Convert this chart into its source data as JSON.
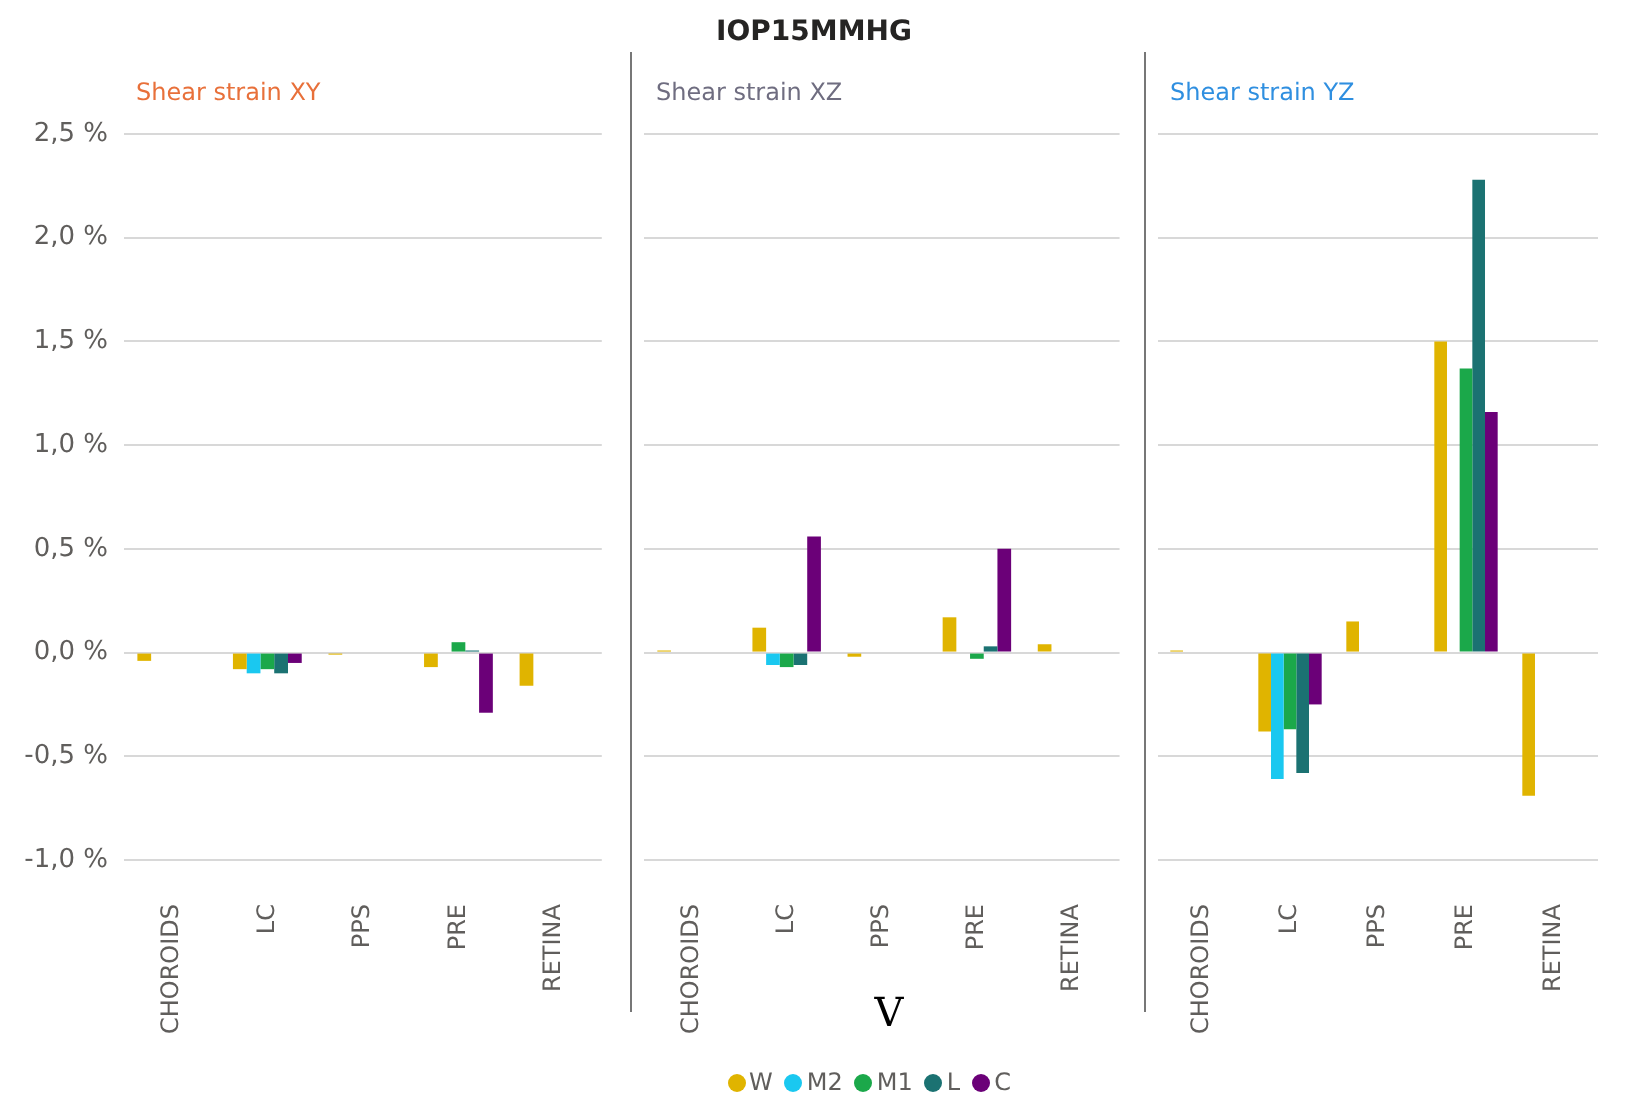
{
  "chart_data": [
    {
      "type": "bar",
      "subtitle": "Shear strain XY",
      "categories": [
        "CHOROIDS",
        "LC",
        "PPS",
        "PRE",
        "RETINA"
      ],
      "series": [
        {
          "color": "#e0b400",
          "values": [
            -0.04,
            -0.08,
            -0.01,
            -0.07,
            -0.16
          ]
        },
        {
          "color": "#1ac8f0",
          "values": [
            null,
            -0.1,
            null,
            null,
            null
          ]
        },
        {
          "color": "#1ba84a",
          "values": [
            null,
            -0.08,
            null,
            0.05,
            null
          ]
        },
        {
          "color": "#1b7272",
          "values": [
            null,
            -0.1,
            null,
            0.01,
            null
          ]
        },
        {
          "color": "#6b0078",
          "values": [
            null,
            -0.05,
            null,
            -0.29,
            null
          ]
        }
      ],
      "ylim": [
        -1,
        2.5
      ],
      "yticks": [
        {
          "value": -1,
          "label": "-1,0 %"
        },
        {
          "value": -0.5,
          "label": "-0,5 %"
        },
        {
          "value": 0,
          "label": "0,0 %"
        },
        {
          "value": 0.5,
          "label": "0,5 %"
        },
        {
          "value": 1,
          "label": "1,0 %"
        },
        {
          "value": 1.5,
          "label": "1,5 %"
        },
        {
          "value": 2,
          "label": "2,0 %"
        },
        {
          "value": 2.5,
          "label": "2,5 %"
        }
      ],
      "grid": "y"
    },
    {
      "type": "bar",
      "title": "IOP15MMHG",
      "subtitle": "Shear strain XZ",
      "xlabel": "V",
      "categories": [
        "CHOROIDS",
        "LC",
        "PPS",
        "PRE",
        "RETINA"
      ],
      "series": [
        {
          "name": "W",
          "color": "#e0b400",
          "values": [
            0.01,
            0.12,
            -0.02,
            0.17,
            0.04
          ]
        },
        {
          "name": "M2",
          "color": "#1ac8f0",
          "values": [
            null,
            -0.06,
            null,
            null,
            null
          ]
        },
        {
          "name": "M1",
          "color": "#1ba84a",
          "values": [
            null,
            -0.07,
            null,
            -0.03,
            null
          ]
        },
        {
          "name": "L",
          "color": "#1b7272",
          "values": [
            null,
            -0.06,
            null,
            0.03,
            null
          ]
        },
        {
          "name": "C",
          "color": "#6b0078",
          "values": [
            null,
            0.56,
            null,
            0.5,
            null
          ]
        }
      ],
      "ylim": [
        -1,
        2.5
      ],
      "yticks": [
        -1,
        -0.5,
        0,
        0.5,
        1,
        1.5,
        2,
        2.5
      ],
      "grid": "y",
      "tick_labels": "x",
      "legend": "bottom"
    },
    {
      "type": "bar",
      "subtitle": "Shear strain YZ",
      "categories": [
        "CHOROIDS",
        "LC",
        "PPS",
        "PRE",
        "RETINA"
      ],
      "series": [
        {
          "color": "#e0b400",
          "values": [
            0.01,
            -0.38,
            0.15,
            1.5,
            -0.69
          ]
        },
        {
          "color": "#1ac8f0",
          "values": [
            null,
            -0.61,
            null,
            null,
            null
          ]
        },
        {
          "color": "#1ba84a",
          "values": [
            null,
            -0.37,
            null,
            1.37,
            null
          ]
        },
        {
          "color": "#1b7272",
          "values": [
            null,
            -0.58,
            null,
            2.28,
            null
          ]
        },
        {
          "color": "#6b0078",
          "values": [
            null,
            -0.25,
            null,
            1.16,
            null
          ]
        }
      ],
      "ylim": [
        -1,
        2.5
      ],
      "yticks": [
        -1,
        -0.5,
        0,
        0.5,
        1,
        1.5,
        2,
        2.5
      ],
      "grid": "y",
      "tick_labels": "x"
    }
  ]
}
